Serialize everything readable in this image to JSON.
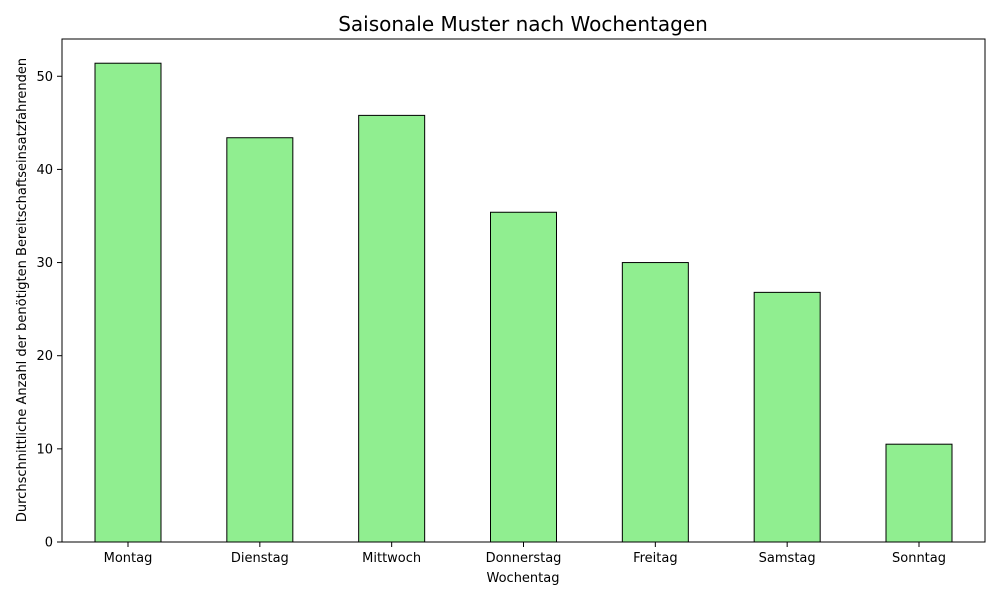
{
  "chart_data": {
    "type": "bar",
    "title": "Saisonale Muster nach Wochentagen",
    "xlabel": "Wochentag",
    "ylabel": "Durchschnittliche Anzahl der benötigten Bereitschaftseinsatzfahrenden",
    "categories": [
      "Montag",
      "Dienstag",
      "Mittwoch",
      "Donnerstag",
      "Freitag",
      "Samstag",
      "Sonntag"
    ],
    "values": [
      51.4,
      43.4,
      45.8,
      35.4,
      30.0,
      26.8,
      10.5
    ],
    "ylim": [
      0,
      54
    ],
    "yticks": [
      0,
      10,
      20,
      30,
      40,
      50
    ],
    "bar_color": "#90ee90",
    "edge_color": "#000000",
    "grid": false,
    "legend": false
  }
}
